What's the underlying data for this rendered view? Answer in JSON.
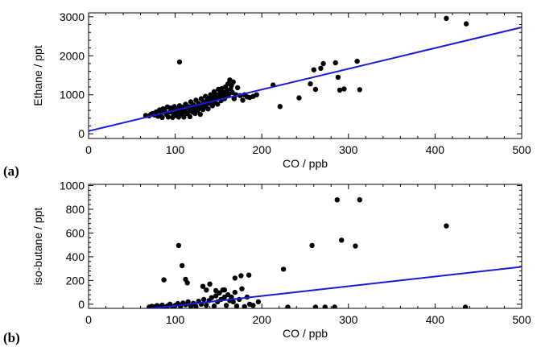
{
  "chart_data": [
    {
      "type": "scatter",
      "panel_label": "(a)",
      "xlabel": "CO / ppb",
      "ylabel": "Ethane / ppt",
      "xlim": [
        0,
        500
      ],
      "ylim": [
        -120,
        3100
      ],
      "xticks": [
        0,
        100,
        200,
        300,
        400,
        500
      ],
      "yticks": [
        0,
        1000,
        2000,
        3000
      ],
      "grid": false,
      "point_color": "#000000",
      "fit_color": "#1a1ad6",
      "fit_line": {
        "x": [
          0,
          500
        ],
        "y": [
          70,
          2730
        ]
      },
      "points": [
        [
          66,
          470
        ],
        [
          70,
          460
        ],
        [
          72,
          500
        ],
        [
          74,
          520
        ],
        [
          76,
          480
        ],
        [
          78,
          560
        ],
        [
          80,
          450
        ],
        [
          82,
          610
        ],
        [
          84,
          530
        ],
        [
          85,
          420
        ],
        [
          86,
          640
        ],
        [
          88,
          580
        ],
        [
          90,
          500
        ],
        [
          91,
          690
        ],
        [
          92,
          430
        ],
        [
          94,
          560
        ],
        [
          95,
          660
        ],
        [
          96,
          600
        ],
        [
          97,
          420
        ],
        [
          98,
          520
        ],
        [
          99,
          700
        ],
        [
          100,
          610
        ],
        [
          101,
          470
        ],
        [
          102,
          560
        ],
        [
          103,
          650
        ],
        [
          104,
          430
        ],
        [
          105,
          720
        ],
        [
          106,
          590
        ],
        [
          107,
          510
        ],
        [
          108,
          680
        ],
        [
          109,
          620
        ],
        [
          110,
          430
        ],
        [
          111,
          560
        ],
        [
          112,
          760
        ],
        [
          113,
          640
        ],
        [
          114,
          520
        ],
        [
          115,
          700
        ],
        [
          116,
          590
        ],
        [
          117,
          440
        ],
        [
          118,
          820
        ],
        [
          119,
          690
        ],
        [
          120,
          560
        ],
        [
          121,
          740
        ],
        [
          122,
          630
        ],
        [
          123,
          520
        ],
        [
          124,
          860
        ],
        [
          125,
          700
        ],
        [
          126,
          600
        ],
        [
          127,
          780
        ],
        [
          128,
          660
        ],
        [
          129,
          500
        ],
        [
          130,
          900
        ],
        [
          131,
          740
        ],
        [
          132,
          620
        ],
        [
          133,
          820
        ],
        [
          134,
          700
        ],
        [
          135,
          960
        ],
        [
          136,
          760
        ],
        [
          137,
          860
        ],
        [
          138,
          640
        ],
        [
          139,
          920
        ],
        [
          140,
          780
        ],
        [
          141,
          1000
        ],
        [
          142,
          860
        ],
        [
          143,
          720
        ],
        [
          144,
          950
        ],
        [
          145,
          1080
        ],
        [
          146,
          800
        ],
        [
          147,
          900
        ],
        [
          148,
          1000
        ],
        [
          149,
          760
        ],
        [
          150,
          1140
        ],
        [
          151,
          920
        ],
        [
          152,
          1040
        ],
        [
          153,
          850
        ],
        [
          154,
          1160
        ],
        [
          155,
          960
        ],
        [
          156,
          1060
        ],
        [
          157,
          900
        ],
        [
          158,
          1200
        ],
        [
          159,
          1000
        ],
        [
          160,
          1120
        ],
        [
          161,
          1280
        ],
        [
          162,
          1020
        ],
        [
          163,
          1380
        ],
        [
          164,
          1150
        ],
        [
          165,
          1240
        ],
        [
          166,
          1060
        ],
        [
          167,
          1330
        ],
        [
          168,
          900
        ],
        [
          170,
          1000
        ],
        [
          172,
          1180
        ],
        [
          175,
          980
        ],
        [
          178,
          860
        ],
        [
          180,
          1000
        ],
        [
          183,
          950
        ],
        [
          186,
          930
        ],
        [
          190,
          960
        ],
        [
          194,
          1000
        ],
        [
          105,
          1840
        ],
        [
          213,
          1250
        ],
        [
          221,
          700
        ],
        [
          243,
          920
        ],
        [
          256,
          1280
        ],
        [
          260,
          1640
        ],
        [
          262,
          1140
        ],
        [
          268,
          1680
        ],
        [
          271,
          1800
        ],
        [
          285,
          1820
        ],
        [
          288,
          1450
        ],
        [
          290,
          1120
        ],
        [
          295,
          1150
        ],
        [
          310,
          1860
        ],
        [
          313,
          1130
        ],
        [
          413,
          2960
        ],
        [
          436,
          2820
        ]
      ]
    },
    {
      "type": "scatter",
      "panel_label": "(b)",
      "xlabel": "CO / ppb",
      "ylabel": "iso-butane / ppt",
      "xlim": [
        0,
        500
      ],
      "ylim": [
        -35,
        1010
      ],
      "xticks": [
        0,
        100,
        200,
        300,
        400,
        500
      ],
      "yticks": [
        0,
        200,
        400,
        600,
        800,
        1000
      ],
      "grid": false,
      "point_color": "#000000",
      "fit_color": "#1a1ad6",
      "fit_line": {
        "x": [
          0,
          500
        ],
        "y": [
          -95,
          315
        ]
      },
      "points": [
        [
          70,
          -25
        ],
        [
          73,
          -18
        ],
        [
          76,
          -22
        ],
        [
          79,
          -12
        ],
        [
          82,
          -20
        ],
        [
          85,
          -8
        ],
        [
          88,
          -24
        ],
        [
          91,
          -15
        ],
        [
          94,
          0
        ],
        [
          97,
          -20
        ],
        [
          100,
          -10
        ],
        [
          103,
          5
        ],
        [
          106,
          -18
        ],
        [
          109,
          10
        ],
        [
          112,
          -5
        ],
        [
          115,
          20
        ],
        [
          118,
          -15
        ],
        [
          121,
          8
        ],
        [
          124,
          -20
        ],
        [
          127,
          25
        ],
        [
          130,
          0
        ],
        [
          133,
          40
        ],
        [
          136,
          -10
        ],
        [
          139,
          30
        ],
        [
          142,
          55
        ],
        [
          145,
          -15
        ],
        [
          147,
          70
        ],
        [
          149,
          20
        ],
        [
          151,
          95
        ],
        [
          153,
          40
        ],
        [
          155,
          120
        ],
        [
          157,
          60
        ],
        [
          159,
          -10
        ],
        [
          161,
          80
        ],
        [
          163,
          30
        ],
        [
          165,
          60
        ],
        [
          167,
          20
        ],
        [
          169,
          100
        ],
        [
          171,
          -15
        ],
        [
          174,
          40
        ],
        [
          177,
          130
        ],
        [
          180,
          -20
        ],
        [
          183,
          60
        ],
        [
          186,
          0
        ],
        [
          190,
          -10
        ],
        [
          196,
          20
        ],
        [
          87,
          205
        ],
        [
          108,
          325
        ],
        [
          112,
          210
        ],
        [
          114,
          180
        ],
        [
          132,
          150
        ],
        [
          136,
          120
        ],
        [
          140,
          170
        ],
        [
          147,
          115
        ],
        [
          157,
          120
        ],
        [
          169,
          220
        ],
        [
          176,
          240
        ],
        [
          185,
          245
        ],
        [
          104,
          495
        ],
        [
          225,
          295
        ],
        [
          258,
          495
        ],
        [
          287,
          880
        ],
        [
          292,
          540
        ],
        [
          308,
          490
        ],
        [
          313,
          880
        ],
        [
          413,
          660
        ],
        [
          230,
          -25
        ],
        [
          262,
          -25
        ],
        [
          273,
          -25
        ],
        [
          284,
          -25
        ],
        [
          435,
          -25
        ]
      ]
    }
  ]
}
